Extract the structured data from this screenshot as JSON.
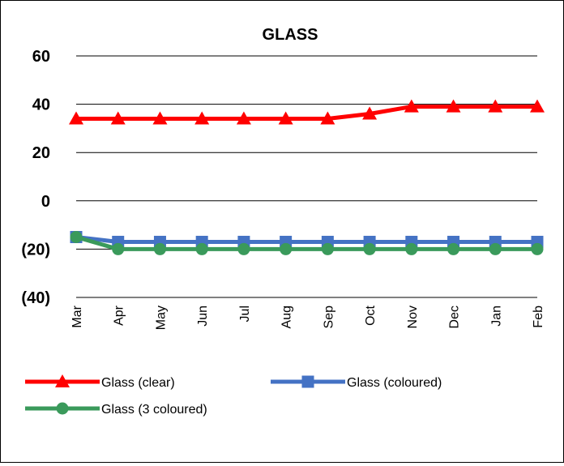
{
  "chart_data": {
    "type": "line",
    "title": "GLASS",
    "xlabel": "",
    "ylabel": "",
    "categories": [
      "Mar",
      "Apr",
      "May",
      "Jun",
      "Jul",
      "Aug",
      "Sep",
      "Oct",
      "Nov",
      "Dec",
      "Jan",
      "Feb"
    ],
    "y_ticks": [
      "60",
      "40",
      "20",
      "0",
      "(20)",
      "(40)"
    ],
    "ylim": [
      -40,
      60
    ],
    "grid": "horizontal",
    "legend_position": "bottom",
    "series": [
      {
        "name": "Glass (clear)",
        "color": "#ff0000",
        "marker": "triangle",
        "values": [
          34,
          34,
          34,
          34,
          34,
          34,
          34,
          36,
          39,
          39,
          39,
          39
        ]
      },
      {
        "name": "Glass (coloured)",
        "color": "#4472c4",
        "marker": "square",
        "values": [
          -15,
          -17,
          -17,
          -17,
          -17,
          -17,
          -17,
          -17,
          -17,
          -17,
          -17,
          -17
        ]
      },
      {
        "name": "Glass (3 coloured)",
        "color": "#3a9a5b",
        "marker": "circle",
        "values": [
          -15,
          -20,
          -20,
          -20,
          -20,
          -20,
          -20,
          -20,
          -20,
          -20,
          -20,
          -20
        ]
      }
    ]
  }
}
